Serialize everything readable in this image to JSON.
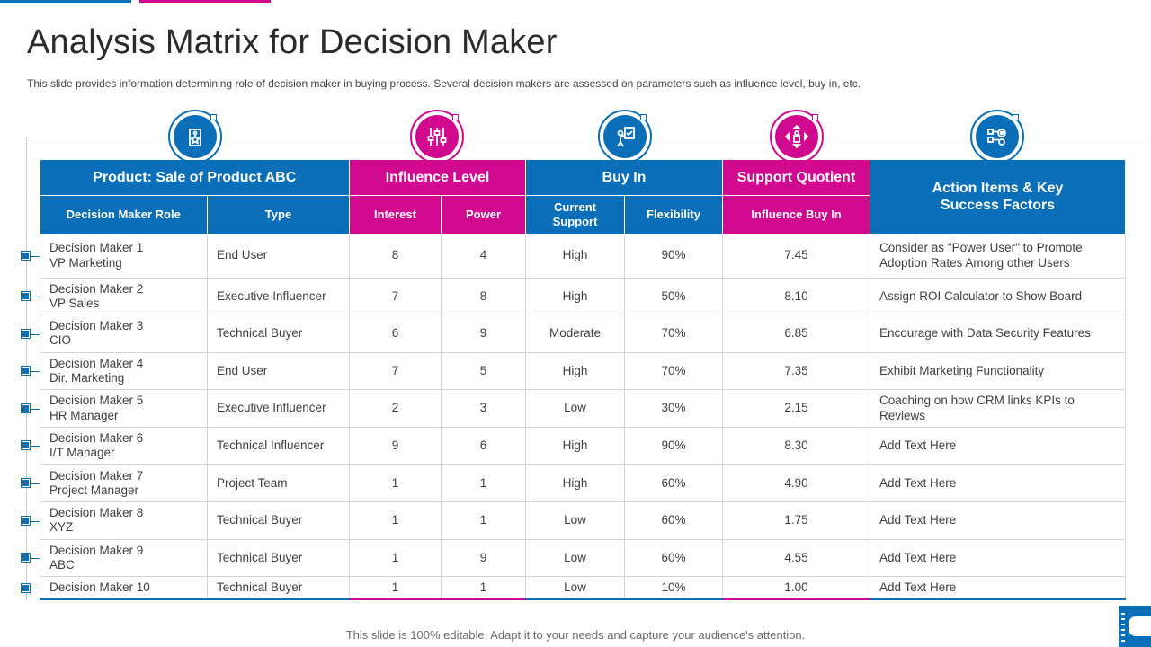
{
  "title": "Analysis Matrix for Decision Maker",
  "subtitle": "This slide provides information determining role of decision maker in buying process. Several decision makers are assessed on parameters such as influence level, buy in, etc.",
  "colors": {
    "blue": "#0a6fb8",
    "pink": "#d1098f"
  },
  "icons": [
    "price-tag-icon",
    "sliders-icon",
    "approval-person-icon",
    "directions-person-icon",
    "process-gears-icon"
  ],
  "table": {
    "groups": {
      "product": "Product:  Sale of Product ABC",
      "influence": "Influence Level",
      "buyin": "Buy In",
      "support": "Support Quotient",
      "action_line1": "Action Items & Key",
      "action_line2": "Success Factors"
    },
    "columns": {
      "role": "Decision Maker Role",
      "type": "Type",
      "interest": "Interest",
      "power": "Power",
      "current_support_line1": "Current",
      "current_support_line2": "Support",
      "flexibility": "Flexibility",
      "influence_buy_in": "Influence Buy  In"
    },
    "rows": [
      {
        "role1": "Decision Maker 1",
        "role2": "VP Marketing",
        "type": "End User",
        "interest": "8",
        "power": "4",
        "support": "High",
        "flex": "90%",
        "buyin": "7.45",
        "action1": "Consider as  \"Power User\" to Promote",
        "action2": "Adoption Rates Among other Users"
      },
      {
        "role1": "Decision Maker 2",
        "role2": "VP Sales",
        "type": "Executive Influencer",
        "interest": "7",
        "power": "8",
        "support": "High",
        "flex": "50%",
        "buyin": "8.10",
        "action1": "Assign ROI Calculator to Show Board",
        "action2": ""
      },
      {
        "role1": "Decision Maker 3",
        "role2": "CIO",
        "type": "Technical Buyer",
        "interest": "6",
        "power": "9",
        "support": "Moderate",
        "flex": "70%",
        "buyin": "6.85",
        "action1": "Encourage with Data Security Features",
        "action2": ""
      },
      {
        "role1": "Decision Maker 4",
        "role2": "Dir. Marketing",
        "type": "End User",
        "interest": "7",
        "power": "5",
        "support": "High",
        "flex": "70%",
        "buyin": "7.35",
        "action1": "Exhibit Marketing Functionality",
        "action2": ""
      },
      {
        "role1": "Decision Maker 5",
        "role2": "HR Manager",
        "type": "Executive Influencer",
        "interest": "2",
        "power": "3",
        "support": "Low",
        "flex": "30%",
        "buyin": "2.15",
        "action1": "Coaching on how CRM links KPIs to",
        "action2": "Reviews"
      },
      {
        "role1": "Decision Maker 6",
        "role2": "I/T Manager",
        "type": "Technical Influencer",
        "interest": "9",
        "power": "6",
        "support": "High",
        "flex": "90%",
        "buyin": "8.30",
        "action1": "Add Text Here",
        "action2": ""
      },
      {
        "role1": "Decision Maker 7",
        "role2": "Project Manager",
        "type": "Project Team",
        "interest": "1",
        "power": "1",
        "support": "High",
        "flex": "60%",
        "buyin": "4.90",
        "action1": "Add Text Here",
        "action2": ""
      },
      {
        "role1": "Decision Maker 8",
        "role2": "XYZ",
        "type": "Technical Buyer",
        "interest": "1",
        "power": "1",
        "support": "Low",
        "flex": "60%",
        "buyin": "1.75",
        "action1": "Add Text Here",
        "action2": ""
      },
      {
        "role1": "Decision Maker 9",
        "role2": "ABC",
        "type": "Technical Buyer",
        "interest": "1",
        "power": "9",
        "support": "Low",
        "flex": "60%",
        "buyin": "4.55",
        "action1": "Add Text Here",
        "action2": ""
      },
      {
        "role1": "Decision Maker 10",
        "role2": "",
        "type": "Technical Buyer",
        "interest": "1",
        "power": "1",
        "support": "Low",
        "flex": "10%",
        "buyin": "1.00",
        "action1": "Add Text Here",
        "action2": ""
      }
    ]
  },
  "footer": "This slide is 100% editable. Adapt it to your needs and capture your audience's attention."
}
